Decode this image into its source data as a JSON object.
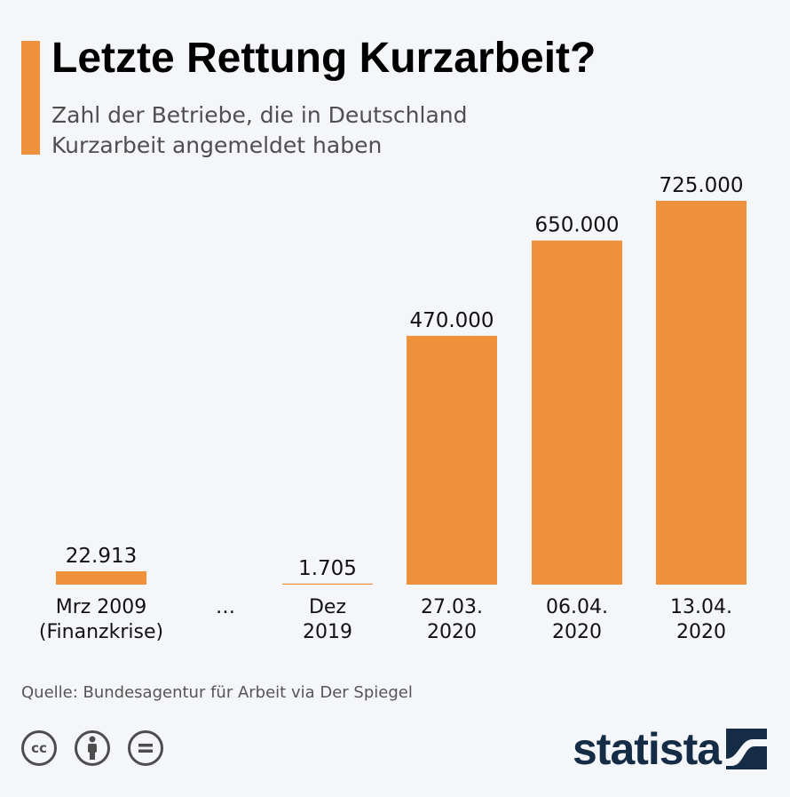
{
  "header": {
    "title": "Letzte Rettung Kurzarbeit?",
    "subtitle": "Zahl der Betriebe, die in Deutschland Kurzarbeit angemeldet haben"
  },
  "colors": {
    "accent": "#ee913a",
    "bar": "#ee913a",
    "background": "#f4f6f9",
    "logo": "#142c45"
  },
  "chart_data": {
    "type": "bar",
    "categories": [
      [
        "Mrz 2009",
        "(Finanzkrise)"
      ],
      [
        "…"
      ],
      [
        "Dez",
        "2019"
      ],
      [
        "27.03.",
        "2020"
      ],
      [
        "06.04.",
        "2020"
      ],
      [
        "13.04.",
        "2020"
      ]
    ],
    "values": [
      22913,
      null,
      1705,
      470000,
      650000,
      725000
    ],
    "value_labels": [
      "22.913",
      "",
      "1.705",
      "470.000",
      "650.000",
      "725.000"
    ],
    "ylim": [
      0,
      725000
    ],
    "grid": false,
    "legend": "none"
  },
  "footer": {
    "source": "Quelle: Bundesagentur für Arbeit via Der Spiegel",
    "license_icons": [
      "cc-icon",
      "by-icon",
      "nd-icon"
    ],
    "logo_text": "statista"
  }
}
